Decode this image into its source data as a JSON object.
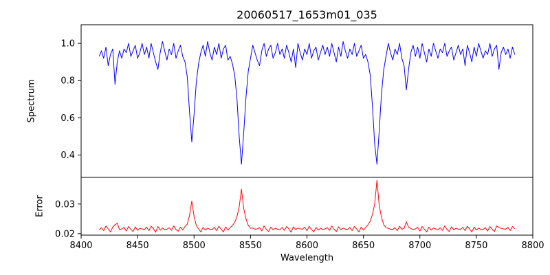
{
  "chart_data": {
    "type": "line",
    "title": "20060517_1653m01_035",
    "xlabel": "Wavelength",
    "xlim": [
      8400,
      8800
    ],
    "xtick_values": [
      8400,
      8450,
      8500,
      8550,
      8600,
      8650,
      8700,
      8750,
      8800
    ],
    "xtick_labels": [
      "8400",
      "8450",
      "8500",
      "8550",
      "8600",
      "8650",
      "8700",
      "8750",
      "8800"
    ],
    "x_start": 8416,
    "x_step": 2,
    "grid": false,
    "legend": "none",
    "subplots": [
      {
        "ylabel": "Spectrum",
        "ylim": [
          0.28,
          1.1
        ],
        "ytick_values": [
          0.4,
          0.6,
          0.8,
          1.0
        ],
        "ytick_labels": [
          "0.4",
          "0.6",
          "0.8",
          "1.0"
        ],
        "line_color": "#0000ff",
        "series": "spectrum"
      },
      {
        "ylabel": "Error",
        "ylim": [
          0.0195,
          0.039
        ],
        "ytick_values": [
          0.02,
          0.03
        ],
        "ytick_labels": [
          "0.02",
          "0.03"
        ],
        "line_color": "#ff0000",
        "series": "error"
      }
    ],
    "series": {
      "spectrum": [
        0.93,
        0.96,
        0.92,
        0.98,
        0.88,
        0.94,
        0.97,
        0.78,
        0.9,
        0.96,
        0.92,
        0.97,
        0.95,
        1.0,
        0.93,
        0.96,
        0.99,
        0.92,
        0.95,
        1.0,
        0.94,
        0.98,
        0.92,
        1.0,
        0.95,
        0.9,
        0.86,
        0.95,
        1.01,
        0.96,
        0.91,
        0.97,
        0.94,
        1.0,
        0.92,
        0.96,
        0.99,
        0.93,
        0.9,
        0.82,
        0.63,
        0.47,
        0.62,
        0.79,
        0.89,
        0.95,
        0.99,
        0.93,
        1.01,
        0.95,
        0.91,
        0.98,
        0.94,
        1.0,
        0.92,
        0.97,
        0.99,
        0.91,
        0.93,
        0.89,
        0.83,
        0.7,
        0.5,
        0.35,
        0.52,
        0.71,
        0.85,
        0.92,
        0.99,
        0.95,
        0.91,
        0.88,
        0.96,
        1.0,
        0.93,
        0.97,
        0.99,
        0.92,
        0.95,
        1.0,
        0.94,
        0.97,
        0.92,
        0.99,
        0.95,
        0.9,
        0.97,
        0.87,
        1.0,
        0.95,
        0.91,
        0.97,
        0.94,
        1.0,
        0.92,
        0.96,
        0.98,
        0.91,
        0.95,
        0.99,
        0.94,
        0.98,
        0.93,
        1.0,
        0.95,
        0.9,
        0.98,
        0.93,
        1.01,
        0.96,
        0.92,
        0.97,
        0.94,
        1.0,
        0.93,
        0.96,
        0.99,
        0.92,
        0.94,
        0.9,
        0.83,
        0.66,
        0.46,
        0.35,
        0.53,
        0.73,
        0.86,
        0.93,
        1.0,
        0.95,
        0.91,
        0.97,
        0.94,
        1.0,
        0.92,
        0.88,
        0.75,
        0.86,
        0.95,
        0.99,
        0.93,
        0.98,
        0.92,
        1.0,
        0.95,
        0.9,
        0.97,
        0.93,
        1.0,
        0.96,
        0.92,
        0.97,
        0.95,
        1.0,
        0.93,
        0.96,
        0.98,
        0.91,
        0.95,
        0.99,
        0.94,
        0.97,
        0.88,
        0.99,
        0.95,
        0.9,
        0.98,
        0.93,
        1.0,
        0.96,
        0.92,
        0.96,
        0.94,
        1.0,
        0.93,
        0.97,
        0.99,
        0.86,
        0.95,
        0.98,
        0.94,
        0.97,
        0.92,
        0.98,
        0.94
      ],
      "error": [
        0.0213,
        0.022,
        0.021,
        0.0226,
        0.0216,
        0.0206,
        0.0222,
        0.023,
        0.0235,
        0.0214,
        0.0216,
        0.0221,
        0.0209,
        0.0224,
        0.0215,
        0.0207,
        0.0223,
        0.0211,
        0.0218,
        0.0216,
        0.0214,
        0.0222,
        0.021,
        0.0225,
        0.0217,
        0.0205,
        0.0224,
        0.0212,
        0.0219,
        0.0214,
        0.0215,
        0.022,
        0.0211,
        0.0226,
        0.0214,
        0.0208,
        0.0222,
        0.0213,
        0.0224,
        0.0232,
        0.0262,
        0.031,
        0.0258,
        0.0228,
        0.0216,
        0.0206,
        0.0221,
        0.0212,
        0.0219,
        0.0215,
        0.0214,
        0.0221,
        0.021,
        0.0225,
        0.0215,
        0.0206,
        0.0223,
        0.0212,
        0.022,
        0.0228,
        0.0238,
        0.0258,
        0.029,
        0.035,
        0.0285,
        0.025,
        0.0228,
        0.0218,
        0.0219,
        0.0215,
        0.0216,
        0.022,
        0.0209,
        0.0226,
        0.0214,
        0.0207,
        0.0222,
        0.0213,
        0.0218,
        0.0215,
        0.0213,
        0.0221,
        0.0211,
        0.0224,
        0.0216,
        0.0205,
        0.0223,
        0.0214,
        0.0219,
        0.0216,
        0.0215,
        0.0222,
        0.021,
        0.0225,
        0.0214,
        0.0206,
        0.0221,
        0.0212,
        0.0218,
        0.0214,
        0.0216,
        0.022,
        0.0211,
        0.0226,
        0.0215,
        0.0207,
        0.0223,
        0.0213,
        0.0219,
        0.0215,
        0.0214,
        0.0221,
        0.021,
        0.0224,
        0.0216,
        0.0206,
        0.0222,
        0.0212,
        0.0221,
        0.023,
        0.0242,
        0.0265,
        0.03,
        0.038,
        0.0295,
        0.0255,
        0.023,
        0.022,
        0.0218,
        0.0215,
        0.0214,
        0.022,
        0.021,
        0.0225,
        0.0215,
        0.0218,
        0.024,
        0.0222,
        0.0217,
        0.0214,
        0.0216,
        0.0221,
        0.0209,
        0.0224,
        0.0215,
        0.0206,
        0.0222,
        0.0212,
        0.0219,
        0.0216,
        0.0213,
        0.022,
        0.0211,
        0.0226,
        0.0214,
        0.0207,
        0.0223,
        0.0213,
        0.0218,
        0.0215,
        0.0215,
        0.0221,
        0.021,
        0.0225,
        0.0216,
        0.0206,
        0.0222,
        0.0212,
        0.0219,
        0.0214,
        0.0214,
        0.022,
        0.0209,
        0.0224,
        0.0215,
        0.0207,
        0.0226,
        0.0221,
        0.0218,
        0.0216,
        0.0215,
        0.0221,
        0.021,
        0.0224,
        0.0216
      ]
    }
  }
}
